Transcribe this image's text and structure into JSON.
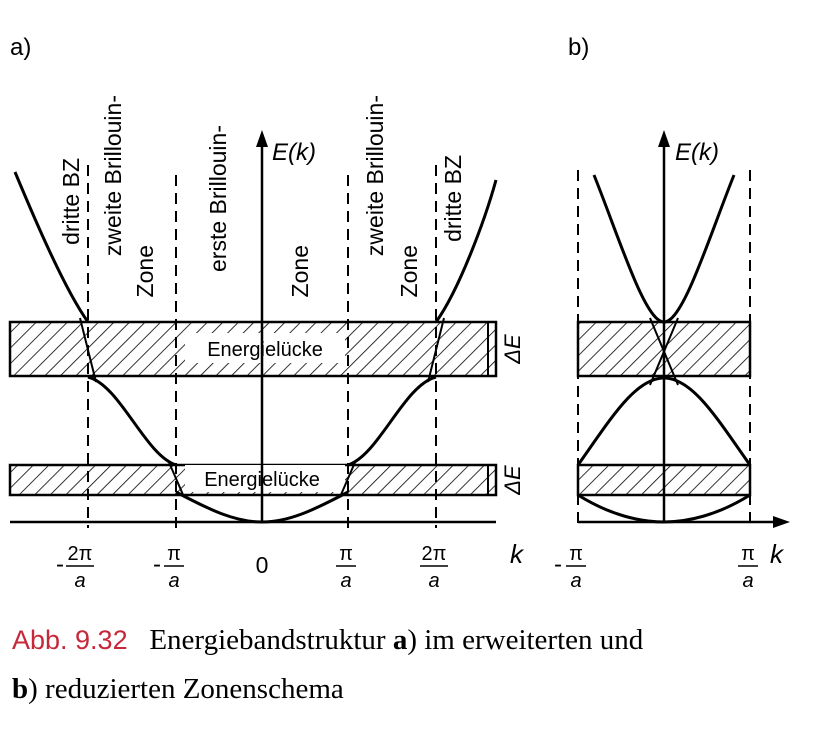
{
  "panel_a": {
    "label": "a)",
    "axis_y_label": "E(k)",
    "axis_x_label": "k",
    "zone_labels": {
      "left_third": "dritte BZ",
      "left_second_line1": "zweite Brillouin-",
      "left_second_line2": "Zone",
      "first_line1": "erste Brillouin-",
      "first_line2": "Zone",
      "right_second_line1": "zweite Brillouin-",
      "right_second_line2": "Zone",
      "right_third": "dritte BZ"
    },
    "gap_upper_label": "Energielücke",
    "gap_lower_label": "Energielücke",
    "gap_upper_delta": "ΔE",
    "gap_lower_delta": "ΔE",
    "ticks": {
      "minus_2pi_num": "2π",
      "minus_2pi_den": "a",
      "minus_pi_num": "π",
      "minus_pi_den": "a",
      "zero": "0",
      "pi_num": "π",
      "pi_den": "a",
      "two_pi_num": "2π",
      "two_pi_den": "a",
      "minus_sign": "-"
    }
  },
  "panel_b": {
    "label": "b)",
    "axis_y_label": "E(k)",
    "axis_x_label": "k",
    "ticks": {
      "minus_pi_num": "π",
      "minus_pi_den": "a",
      "pi_num": "π",
      "pi_den": "a",
      "minus_sign": "-"
    }
  },
  "caption": {
    "label": "Abb. 9.32",
    "text_1": "Energiebandstruktur ",
    "bold_a": "a",
    "text_2": ") im erweiterten und",
    "bold_b": "b",
    "text_3": ") reduzierten Zonenschema"
  }
}
